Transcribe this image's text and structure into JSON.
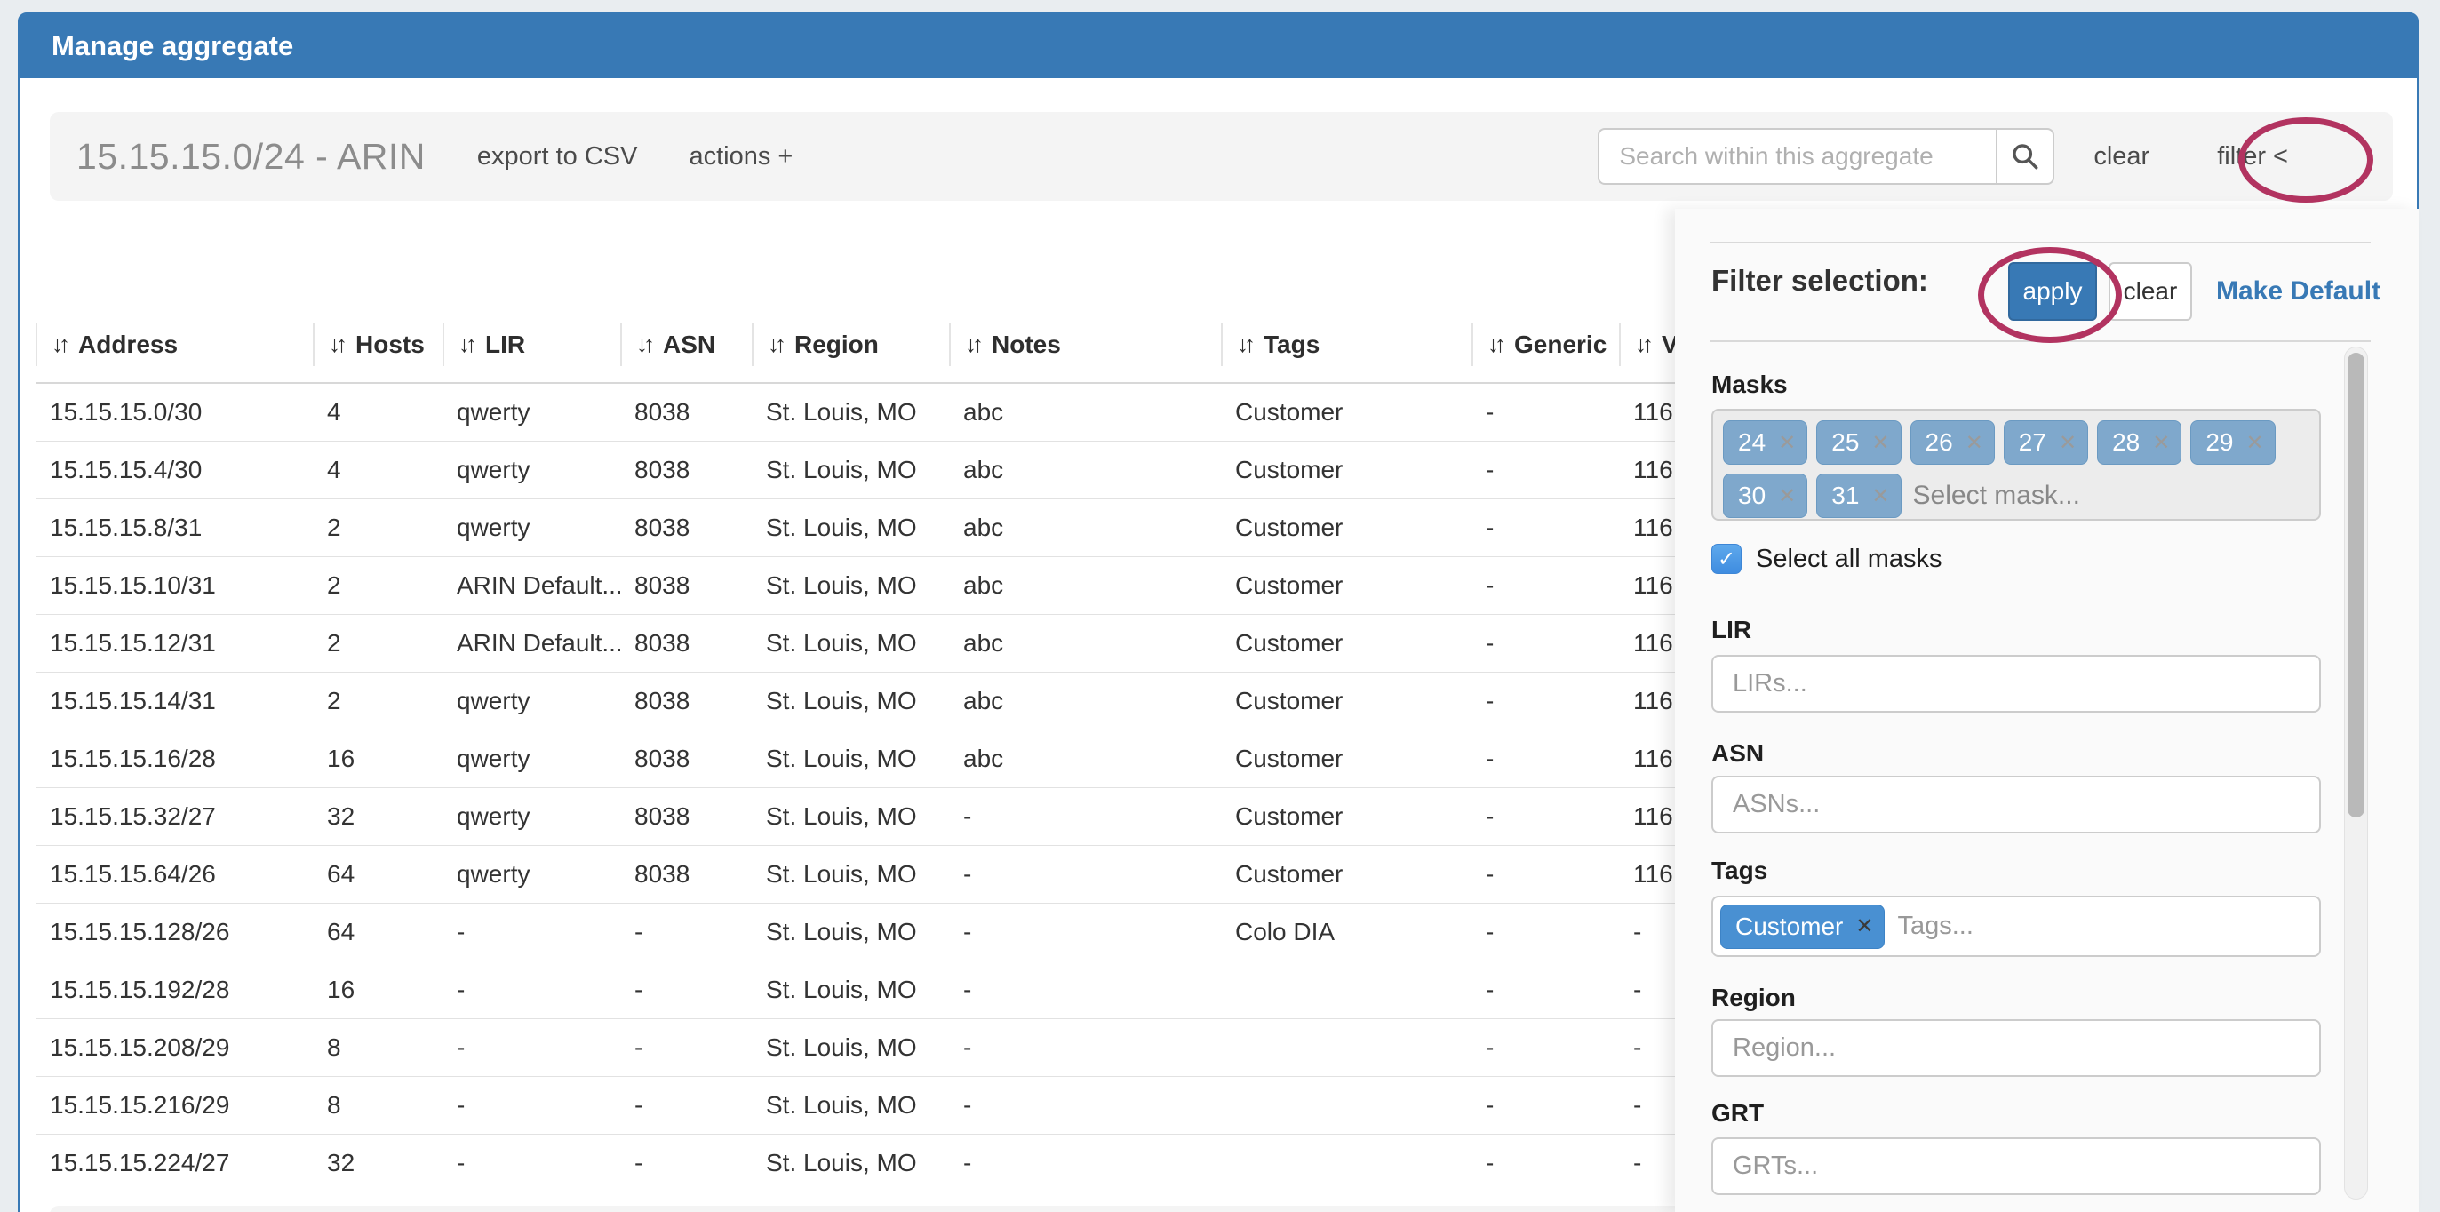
{
  "panel": {
    "title": "Manage aggregate"
  },
  "toolbar": {
    "aggregate_title": "15.15.15.0/24 - ARIN",
    "export_csv_label": "export to CSV",
    "actions_label": "actions +",
    "search_placeholder": "Search within this aggregate",
    "clear_label": "clear",
    "filter_label": "filter <"
  },
  "filter_panel": {
    "heading": "Filter selection:",
    "apply_label": "apply",
    "clear_label": "clear",
    "make_default_label": "Make Default",
    "masks": {
      "label": "Masks",
      "selected": [
        "24",
        "25",
        "26",
        "27",
        "28",
        "29",
        "30",
        "31"
      ],
      "placeholder": "Select mask...",
      "select_all_label": "Select all masks",
      "select_all_checked": true,
      "checkmark": "✓"
    },
    "lir": {
      "label": "LIR",
      "placeholder": "LIRs..."
    },
    "asn": {
      "label": "ASN",
      "placeholder": "ASNs..."
    },
    "tags": {
      "label": "Tags",
      "selected": [
        "Customer"
      ],
      "placeholder": "Tags..."
    },
    "region": {
      "label": "Region",
      "placeholder": "Region..."
    },
    "grt": {
      "label": "GRT",
      "placeholder": "GRTs..."
    }
  },
  "table": {
    "columns": [
      "Address",
      "Hosts",
      "LIR",
      "ASN",
      "Region",
      "Notes",
      "Tags",
      "Generic",
      "VLAN"
    ],
    "sort_icon": "↓↑",
    "rows": [
      [
        "15.15.15.0/30",
        "4",
        "qwerty",
        "8038",
        "St. Louis, MO",
        "abc",
        "Customer",
        "-",
        "116"
      ],
      [
        "15.15.15.4/30",
        "4",
        "qwerty",
        "8038",
        "St. Louis, MO",
        "abc",
        "Customer",
        "-",
        "116"
      ],
      [
        "15.15.15.8/31",
        "2",
        "qwerty",
        "8038",
        "St. Louis, MO",
        "abc",
        "Customer",
        "-",
        "116"
      ],
      [
        "15.15.15.10/31",
        "2",
        "ARIN Default...",
        "8038",
        "St. Louis, MO",
        "abc",
        "Customer",
        "-",
        "116"
      ],
      [
        "15.15.15.12/31",
        "2",
        "ARIN Default...",
        "8038",
        "St. Louis, MO",
        "abc",
        "Customer",
        "-",
        "116"
      ],
      [
        "15.15.15.14/31",
        "2",
        "qwerty",
        "8038",
        "St. Louis, MO",
        "abc",
        "Customer",
        "-",
        "116"
      ],
      [
        "15.15.15.16/28",
        "16",
        "qwerty",
        "8038",
        "St. Louis, MO",
        "abc",
        "Customer",
        "-",
        "116"
      ],
      [
        "15.15.15.32/27",
        "32",
        "qwerty",
        "8038",
        "St. Louis, MO",
        "-",
        "Customer",
        "-",
        "116"
      ],
      [
        "15.15.15.64/26",
        "64",
        "qwerty",
        "8038",
        "St. Louis, MO",
        "-",
        "Customer",
        "-",
        "116"
      ],
      [
        "15.15.15.128/26",
        "64",
        "-",
        "-",
        "St. Louis, MO",
        "-",
        "Colo DIA",
        "-",
        "-"
      ],
      [
        "15.15.15.192/28",
        "16",
        "-",
        "-",
        "St. Louis, MO",
        "-",
        "",
        "-",
        "-"
      ],
      [
        "15.15.15.208/29",
        "8",
        "-",
        "-",
        "St. Louis, MO",
        "-",
        "",
        "-",
        "-"
      ],
      [
        "15.15.15.216/29",
        "8",
        "-",
        "-",
        "St. Louis, MO",
        "-",
        "",
        "-",
        "-"
      ],
      [
        "15.15.15.224/27",
        "32",
        "-",
        "-",
        "St. Louis, MO",
        "-",
        "",
        "-",
        "-"
      ]
    ]
  },
  "colors": {
    "panel_blue": "#3879b5",
    "annotation_red": "#b23360",
    "mask_chip_blue": "#7fa8cc",
    "tag_chip_blue": "#4990d2",
    "toolbar_gray": "#f4f4f4"
  }
}
